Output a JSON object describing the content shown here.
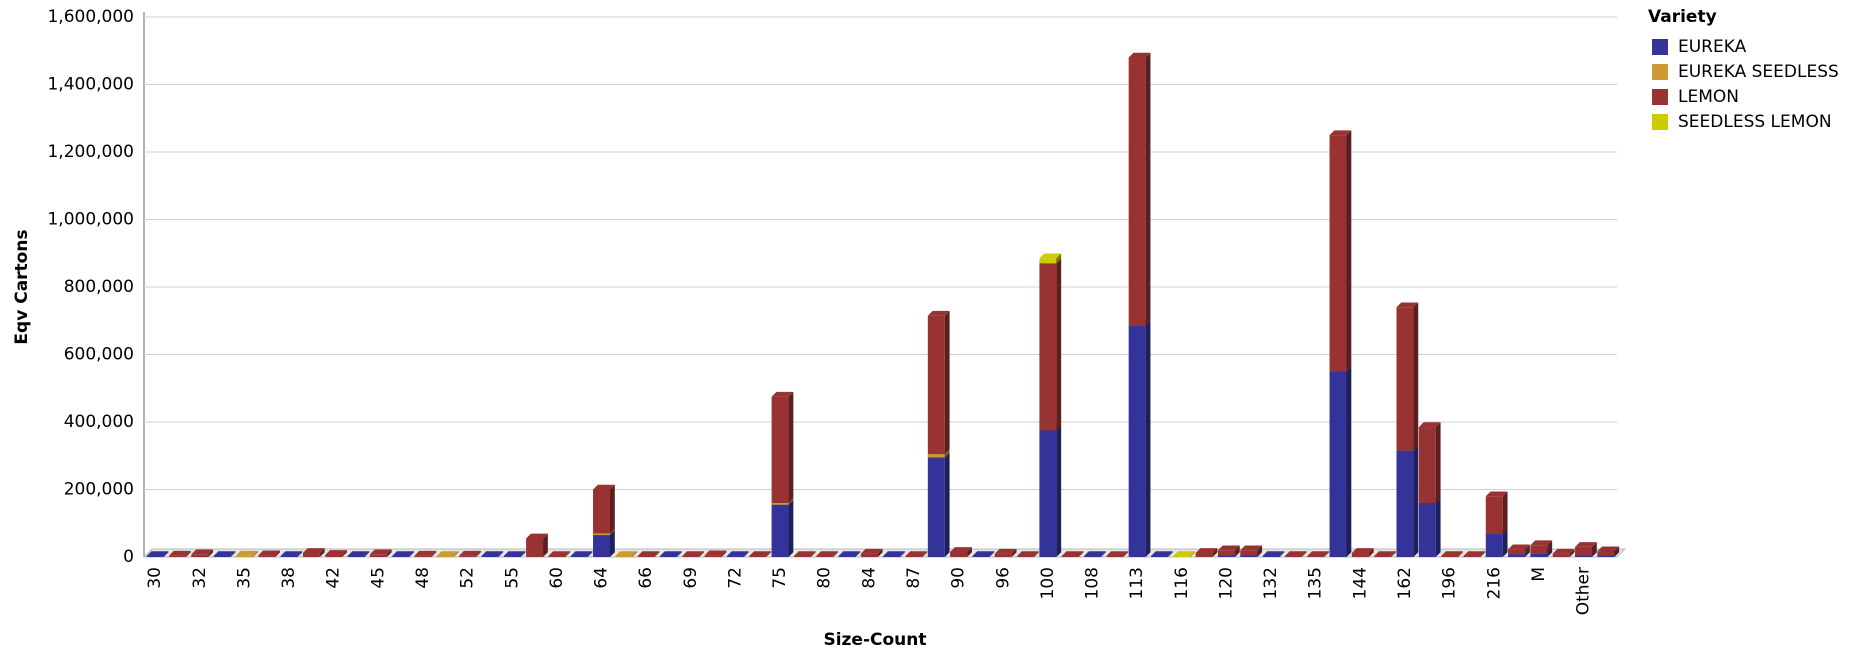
{
  "chart_data": {
    "type": "bar3d_stacked",
    "x_label": "Size-Count",
    "y_label": "Eqv Cartons",
    "legend_title": "Variety",
    "legend": "right-top",
    "categories": [
      "30",
      null,
      "32",
      null,
      "35",
      null,
      "38",
      null,
      "42",
      null,
      "45",
      null,
      "48",
      null,
      "52",
      null,
      "55",
      null,
      "60",
      null,
      "64",
      null,
      "66",
      null,
      "69",
      null,
      "72",
      null,
      "75",
      null,
      "80",
      null,
      "84",
      null,
      "87",
      null,
      "90",
      null,
      "96",
      null,
      "100",
      null,
      "108",
      null,
      "113",
      null,
      "116",
      null,
      "120",
      null,
      "132",
      null,
      "135",
      null,
      "144",
      null,
      "162",
      null,
      "196",
      null,
      "216",
      null,
      "M",
      null,
      "Other",
      null
    ],
    "series": [
      {
        "name": "EUREKA",
        "color": "#333399",
        "values": [
          3000,
          0,
          0,
          3000,
          0,
          0,
          3000,
          0,
          0,
          3000,
          0,
          3000,
          0,
          0,
          0,
          3000,
          3000,
          0,
          0,
          3000,
          65000,
          0,
          0,
          3000,
          0,
          0,
          3000,
          0,
          155000,
          0,
          0,
          3000,
          0,
          3000,
          0,
          295000,
          0,
          3000,
          0,
          0,
          375000,
          0,
          3000,
          0,
          685000,
          3000,
          0,
          0,
          5000,
          5000,
          3000,
          0,
          0,
          550000,
          0,
          0,
          315000,
          160000,
          0,
          0,
          68000,
          8000,
          10000,
          0,
          5000,
          5000
        ]
      },
      {
        "name": "EUREKA SEEDLESS",
        "color": "#cc9933",
        "values": [
          0,
          0,
          0,
          0,
          4000,
          0,
          0,
          0,
          0,
          0,
          0,
          0,
          0,
          3000,
          0,
          0,
          0,
          0,
          0,
          0,
          5000,
          3000,
          0,
          0,
          0,
          0,
          0,
          0,
          5000,
          0,
          0,
          0,
          0,
          0,
          0,
          10000,
          0,
          0,
          0,
          0,
          0,
          0,
          0,
          0,
          0,
          0,
          0,
          0,
          0,
          0,
          0,
          0,
          0,
          0,
          0,
          0,
          0,
          0,
          0,
          0,
          0,
          0,
          0,
          0,
          0,
          0
        ]
      },
      {
        "name": "LEMON",
        "color": "#993333",
        "values": [
          0,
          4000,
          8000,
          0,
          0,
          5000,
          0,
          12000,
          6000,
          0,
          8000,
          0,
          4000,
          0,
          4000,
          0,
          0,
          55000,
          3000,
          0,
          130000,
          0,
          3000,
          0,
          3000,
          5000,
          0,
          3000,
          315000,
          3000,
          3000,
          0,
          10000,
          0,
          3000,
          410000,
          15000,
          0,
          10000,
          3000,
          495000,
          3000,
          0,
          3000,
          795000,
          0,
          0,
          12000,
          15000,
          15000,
          0,
          3000,
          3000,
          700000,
          12000,
          3000,
          425000,
          225000,
          3000,
          3000,
          112000,
          15000,
          25000,
          10000,
          25000,
          12000
        ]
      },
      {
        "name": "SEEDLESS LEMON",
        "color": "#cccc00",
        "values": [
          0,
          0,
          0,
          0,
          0,
          0,
          0,
          0,
          0,
          0,
          0,
          0,
          0,
          0,
          0,
          0,
          0,
          0,
          0,
          0,
          0,
          0,
          0,
          0,
          0,
          0,
          0,
          0,
          0,
          0,
          0,
          0,
          0,
          0,
          0,
          0,
          0,
          0,
          0,
          0,
          15000,
          0,
          0,
          0,
          0,
          0,
          3000,
          0,
          0,
          0,
          0,
          0,
          0,
          0,
          0,
          0,
          0,
          0,
          0,
          0,
          0,
          0,
          0,
          0,
          0,
          0
        ]
      }
    ],
    "ylim": [
      0,
      1600000
    ],
    "yticks": [
      0,
      {
        "value": 200000,
        "label": "200,000"
      },
      {
        "value": 400000,
        "label": "400,000"
      },
      {
        "value": 600000,
        "label": "600,000"
      },
      {
        "value": 800000,
        "label": "800,000"
      },
      {
        "value": 1000000,
        "label": "1,000,000"
      },
      {
        "value": 1200000,
        "label": "1,200,000"
      },
      {
        "value": 1400000,
        "label": "1,400,000"
      },
      {
        "value": 1600000,
        "label": "1,600,000"
      }
    ],
    "grid": true
  }
}
